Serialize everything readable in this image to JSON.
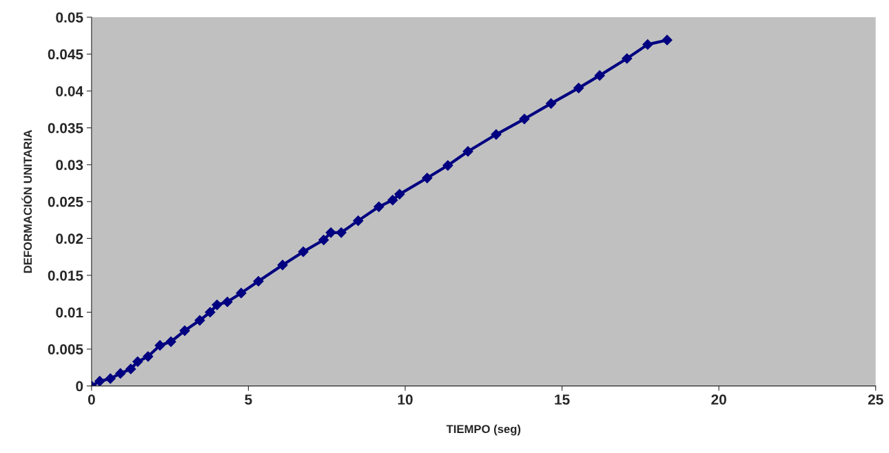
{
  "chart_data": {
    "type": "line",
    "xlabel": "TIEMPO (seg)",
    "ylabel": "DEFORMACIÓN UNITARIA",
    "xlim": [
      0,
      25
    ],
    "xticks": [
      0,
      5,
      10,
      15,
      20,
      25
    ],
    "ylim": [
      0,
      0.05
    ],
    "yticks": [
      0,
      0.005,
      0.01,
      0.015,
      0.02,
      0.025,
      0.03,
      0.035,
      0.04,
      0.045,
      0.05
    ],
    "grid": false,
    "legend": false,
    "marker": "diamond",
    "line_style": "solid",
    "series": [
      {
        "color": "#000080",
        "x": [
          0,
          0.26,
          0.6,
          0.92,
          1.25,
          1.47,
          1.8,
          2.18,
          2.53,
          2.97,
          3.45,
          3.78,
          4.0,
          4.33,
          4.77,
          5.32,
          6.09,
          6.75,
          7.4,
          7.63,
          7.96,
          8.5,
          9.16,
          9.6,
          9.82,
          10.7,
          11.36,
          12.0,
          12.9,
          13.8,
          14.65,
          15.53,
          16.2,
          17.07,
          17.73,
          18.35
        ],
        "values": [
          0,
          0.00065,
          0.001,
          0.0017,
          0.0023,
          0.0033,
          0.004,
          0.0055,
          0.006,
          0.0075,
          0.0089,
          0.01,
          0.011,
          0.0114,
          0.0126,
          0.0142,
          0.0164,
          0.0182,
          0.0198,
          0.0208,
          0.0208,
          0.0224,
          0.0243,
          0.0252,
          0.026,
          0.0282,
          0.0299,
          0.0318,
          0.0341,
          0.0362,
          0.0383,
          0.0404,
          0.0421,
          0.0444,
          0.0463,
          0.0469
        ]
      }
    ]
  }
}
